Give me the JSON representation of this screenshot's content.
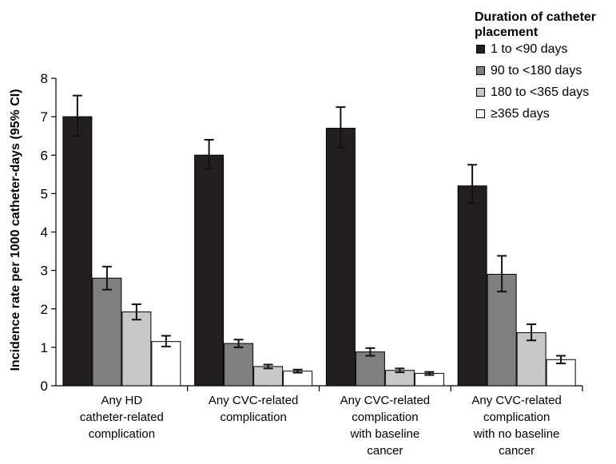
{
  "chart_data": {
    "type": "bar",
    "title": "",
    "xlabel": "",
    "ylabel": "Incidence rate per 1000 catheter-days (95% CI)",
    "ylim": [
      0,
      8
    ],
    "yticks": [
      "0",
      "1",
      "2",
      "3",
      "4",
      "5",
      "6",
      "7",
      "8"
    ],
    "grid": false,
    "legend_position": "top-right",
    "legend_title": "Duration of catheter placement",
    "categories": [
      [
        "Any HD",
        "catheter-related",
        "complication"
      ],
      [
        "Any CVC-related",
        "complication"
      ],
      [
        "Any CVC-related",
        "complication",
        "with baseline",
        "cancer"
      ],
      [
        "Any CVC-related",
        "complication",
        "with no baseline",
        "cancer"
      ]
    ],
    "series": [
      {
        "name": "1 to <90 days",
        "color": "#231f20",
        "values": [
          7.0,
          6.0,
          6.7,
          5.2
        ],
        "ci_low": [
          6.5,
          5.65,
          6.2,
          4.75
        ],
        "ci_high": [
          7.55,
          6.4,
          7.25,
          5.75
        ]
      },
      {
        "name": "90 to <180 days",
        "color": "#7f7f7f",
        "values": [
          2.8,
          1.1,
          0.88,
          2.9
        ],
        "ci_low": [
          2.5,
          1.0,
          0.78,
          2.45
        ],
        "ci_high": [
          3.1,
          1.2,
          0.98,
          3.38
        ]
      },
      {
        "name": "180 to <365 days",
        "color": "#c8c8c8",
        "values": [
          1.92,
          0.5,
          0.4,
          1.38
        ],
        "ci_low": [
          1.72,
          0.45,
          0.35,
          1.18
        ],
        "ci_high": [
          2.12,
          0.55,
          0.45,
          1.6
        ]
      },
      {
        "name": "≥365 days",
        "color": "#ffffff",
        "values": [
          1.15,
          0.38,
          0.32,
          0.68
        ],
        "ci_low": [
          1.02,
          0.34,
          0.28,
          0.58
        ],
        "ci_high": [
          1.3,
          0.42,
          0.36,
          0.78
        ]
      }
    ]
  }
}
